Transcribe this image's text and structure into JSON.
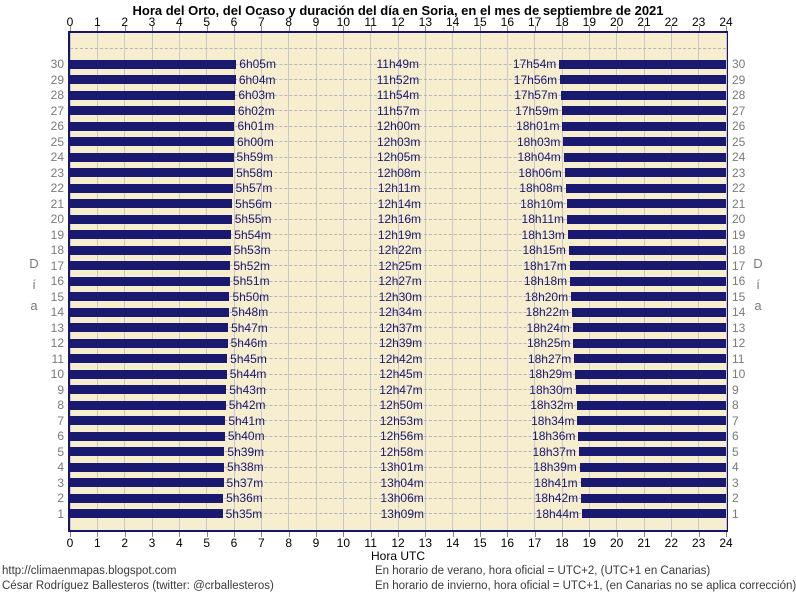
{
  "title": "Hora del Orto, del Ocaso y duración del día en Soria, en el mes de septiembre de 2021",
  "x_axis": {
    "label": "Hora UTC",
    "ticks": [
      0,
      1,
      2,
      3,
      4,
      5,
      6,
      7,
      8,
      9,
      10,
      11,
      12,
      13,
      14,
      15,
      16,
      17,
      18,
      19,
      20,
      21,
      22,
      23,
      24
    ]
  },
  "y_axis": {
    "label": "Día"
  },
  "footer": {
    "site": "http://climaenmapas.blogspot.com",
    "author": "César Rodríguez Ballesteros (twitter: @crballesteros)",
    "note_summer": "En horario de verano, hora oficial = UTC+2, (UTC+1 en Canarias)",
    "note_winter": "En horario de invierno, hora oficial = UTC+1, (en Canarias no se aplica corrección)"
  },
  "colors": {
    "night_bar": "#191970",
    "plot_background": "#F7EED0",
    "frame": "#15156B",
    "grid_solid": "#C8C8C8",
    "grid_dashed": "#B5B5B5",
    "day_labels": "#7A7A7A",
    "time_labels": "#191970"
  },
  "chart_data": {
    "type": "bar",
    "variant": "horizontal-night-span",
    "title": "Hora del Orto, del Ocaso y duración del día en Soria, en el mes de septiembre de 2021",
    "xlabel": "Hora UTC",
    "ylabel": "Día",
    "xlim": [
      0,
      24
    ],
    "ylim": [
      1,
      31
    ],
    "grid": true,
    "note": "Navy bars show night (00:00→orto and ocaso→24:00); cream gap is daylight. Labels per row: orto (sunrise), duración (day length), ocaso (sunset).",
    "days": [
      {
        "day": 1,
        "orto": "5h35m",
        "duracion": "13h09m",
        "ocaso": "18h44m"
      },
      {
        "day": 2,
        "orto": "5h36m",
        "duracion": "13h06m",
        "ocaso": "18h42m"
      },
      {
        "day": 3,
        "orto": "5h37m",
        "duracion": "13h04m",
        "ocaso": "18h41m"
      },
      {
        "day": 4,
        "orto": "5h38m",
        "duracion": "13h01m",
        "ocaso": "18h39m"
      },
      {
        "day": 5,
        "orto": "5h39m",
        "duracion": "12h58m",
        "ocaso": "18h37m"
      },
      {
        "day": 6,
        "orto": "5h40m",
        "duracion": "12h56m",
        "ocaso": "18h36m"
      },
      {
        "day": 7,
        "orto": "5h41m",
        "duracion": "12h53m",
        "ocaso": "18h34m"
      },
      {
        "day": 8,
        "orto": "5h42m",
        "duracion": "12h50m",
        "ocaso": "18h32m"
      },
      {
        "day": 9,
        "orto": "5h43m",
        "duracion": "12h47m",
        "ocaso": "18h30m"
      },
      {
        "day": 10,
        "orto": "5h44m",
        "duracion": "12h45m",
        "ocaso": "18h29m"
      },
      {
        "day": 11,
        "orto": "5h45m",
        "duracion": "12h42m",
        "ocaso": "18h27m"
      },
      {
        "day": 12,
        "orto": "5h46m",
        "duracion": "12h39m",
        "ocaso": "18h25m"
      },
      {
        "day": 13,
        "orto": "5h47m",
        "duracion": "12h37m",
        "ocaso": "18h24m"
      },
      {
        "day": 14,
        "orto": "5h48m",
        "duracion": "12h34m",
        "ocaso": "18h22m"
      },
      {
        "day": 15,
        "orto": "5h50m",
        "duracion": "12h30m",
        "ocaso": "18h20m"
      },
      {
        "day": 16,
        "orto": "5h51m",
        "duracion": "12h27m",
        "ocaso": "18h18m"
      },
      {
        "day": 17,
        "orto": "5h52m",
        "duracion": "12h25m",
        "ocaso": "18h17m"
      },
      {
        "day": 18,
        "orto": "5h53m",
        "duracion": "12h22m",
        "ocaso": "18h15m"
      },
      {
        "day": 19,
        "orto": "5h54m",
        "duracion": "12h19m",
        "ocaso": "18h13m"
      },
      {
        "day": 20,
        "orto": "5h55m",
        "duracion": "12h16m",
        "ocaso": "18h11m"
      },
      {
        "day": 21,
        "orto": "5h56m",
        "duracion": "12h14m",
        "ocaso": "18h10m"
      },
      {
        "day": 22,
        "orto": "5h57m",
        "duracion": "12h11m",
        "ocaso": "18h08m"
      },
      {
        "day": 23,
        "orto": "5h58m",
        "duracion": "12h08m",
        "ocaso": "18h06m"
      },
      {
        "day": 24,
        "orto": "5h59m",
        "duracion": "12h05m",
        "ocaso": "18h04m"
      },
      {
        "day": 25,
        "orto": "6h00m",
        "duracion": "12h03m",
        "ocaso": "18h03m"
      },
      {
        "day": 26,
        "orto": "6h01m",
        "duracion": "12h00m",
        "ocaso": "18h01m"
      },
      {
        "day": 27,
        "orto": "6h02m",
        "duracion": "11h57m",
        "ocaso": "17h59m"
      },
      {
        "day": 28,
        "orto": "6h03m",
        "duracion": "11h54m",
        "ocaso": "17h57m"
      },
      {
        "day": 29,
        "orto": "6h04m",
        "duracion": "11h52m",
        "ocaso": "17h56m"
      },
      {
        "day": 30,
        "orto": "6h05m",
        "duracion": "11h49m",
        "ocaso": "17h54m"
      }
    ]
  }
}
